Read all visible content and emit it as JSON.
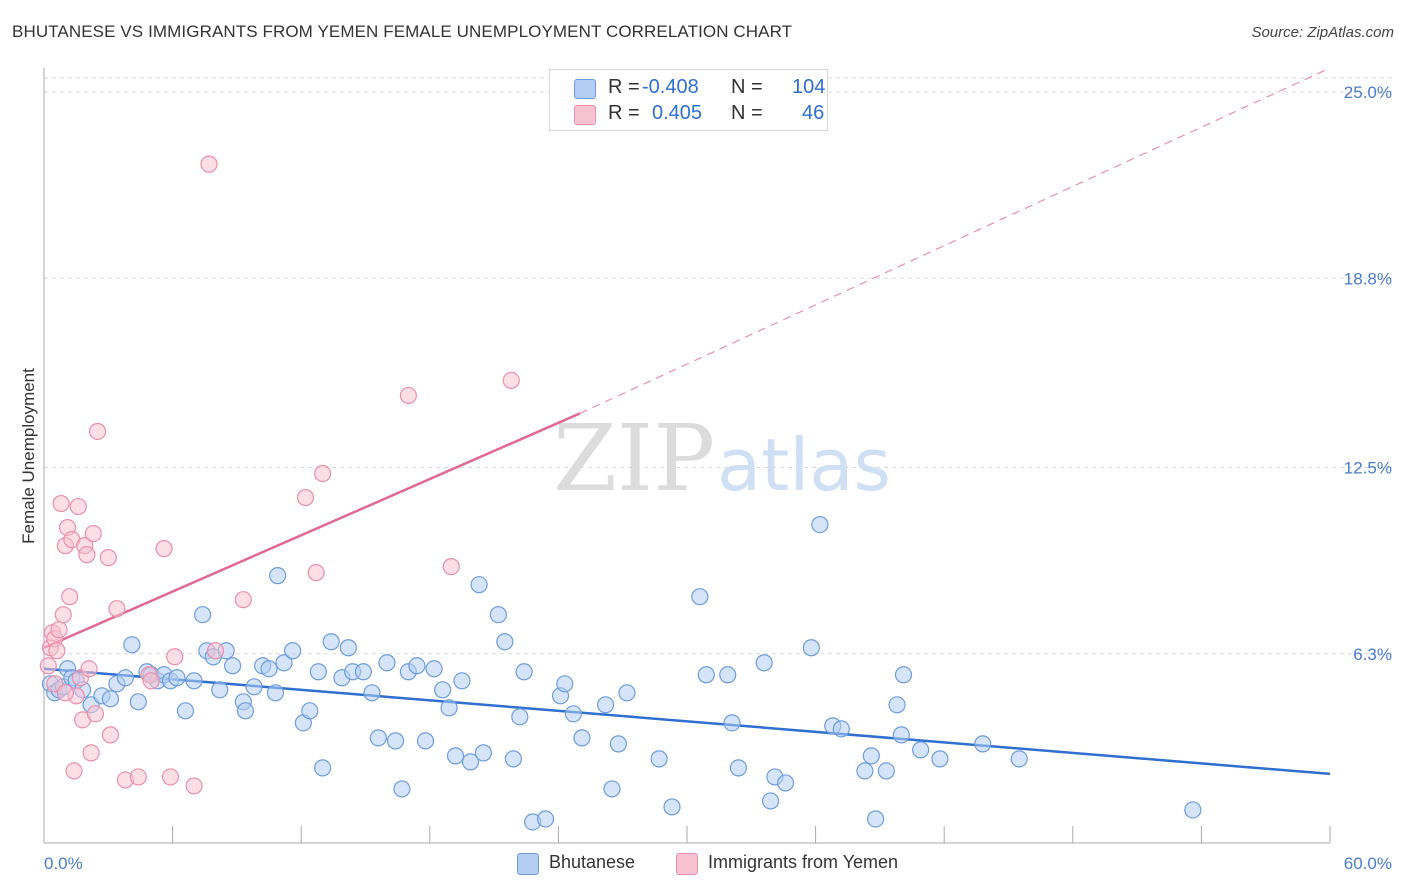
{
  "title": "BHUTANESE VS IMMIGRANTS FROM YEMEN FEMALE UNEMPLOYMENT CORRELATION CHART",
  "source": "Source: ZipAtlas.com",
  "legend_top": [
    {
      "r_label": "R =",
      "r_value": "-0.408",
      "n_label": "N =",
      "n_value": "104"
    },
    {
      "r_label": "R =",
      "r_value": "0.405",
      "n_label": "N =",
      "n_value": "46"
    }
  ],
  "colors": {
    "blue_fill": "#b3cdf2",
    "blue_stroke": "#6d9ddc",
    "blue_line": "#2f6fcf",
    "pink_fill": "#f7c3d2",
    "pink_stroke": "#e990ab",
    "pink_line": "#e06a92",
    "grid": "#d9d9d9",
    "axis": "#aaaaaa"
  },
  "chart_data": {
    "type": "scatter",
    "title": "BHUTANESE VS IMMIGRANTS FROM YEMEN FEMALE UNEMPLOYMENT CORRELATION CHART",
    "xlabel": "",
    "ylabel": "Female Unemployment",
    "xlim": [
      0,
      60
    ],
    "ylim": [
      0,
      25.8
    ],
    "y_ticks": [
      {
        "value": 6.3,
        "label": "6.3%"
      },
      {
        "value": 12.5,
        "label": "12.5%"
      },
      {
        "value": 18.8,
        "label": "18.8%"
      },
      {
        "value": 25.0,
        "label": "25.0%"
      }
    ],
    "x_ticks": [
      {
        "value": 0,
        "label": "0.0%"
      },
      {
        "value": 60,
        "label": "60.0%"
      }
    ],
    "grid": true,
    "watermark": {
      "part1": "ZIP",
      "part2": "atlas"
    },
    "series": [
      {
        "name": "Bhutanese",
        "color": "#6d9ddc",
        "trend": {
          "x0": 0,
          "y0": 5.8,
          "x1": 60,
          "y1": 2.3
        },
        "points": [
          [
            0.3,
            5.3
          ],
          [
            0.5,
            5.0
          ],
          [
            0.7,
            5.1
          ],
          [
            0.9,
            5.2
          ],
          [
            1.1,
            5.8
          ],
          [
            1.3,
            5.5
          ],
          [
            1.5,
            5.4
          ],
          [
            1.8,
            5.1
          ],
          [
            2.2,
            4.6
          ],
          [
            2.7,
            4.9
          ],
          [
            3.1,
            4.8
          ],
          [
            3.4,
            5.3
          ],
          [
            3.8,
            5.5
          ],
          [
            4.1,
            6.6
          ],
          [
            4.4,
            4.7
          ],
          [
            4.8,
            5.7
          ],
          [
            5.0,
            5.6
          ],
          [
            5.3,
            5.4
          ],
          [
            5.6,
            5.6
          ],
          [
            5.9,
            5.4
          ],
          [
            6.2,
            5.5
          ],
          [
            6.6,
            4.4
          ],
          [
            7.0,
            5.4
          ],
          [
            7.4,
            7.6
          ],
          [
            7.6,
            6.4
          ],
          [
            7.9,
            6.2
          ],
          [
            8.2,
            5.1
          ],
          [
            8.5,
            6.4
          ],
          [
            8.8,
            5.9
          ],
          [
            9.3,
            4.7
          ],
          [
            9.4,
            4.4
          ],
          [
            9.8,
            5.2
          ],
          [
            10.2,
            5.9
          ],
          [
            10.5,
            5.8
          ],
          [
            10.8,
            5.0
          ],
          [
            10.9,
            8.9
          ],
          [
            11.2,
            6.0
          ],
          [
            11.6,
            6.4
          ],
          [
            12.1,
            4.0
          ],
          [
            12.4,
            4.4
          ],
          [
            12.8,
            5.7
          ],
          [
            13.0,
            2.5
          ],
          [
            13.4,
            6.7
          ],
          [
            13.9,
            5.5
          ],
          [
            14.2,
            6.5
          ],
          [
            14.4,
            5.7
          ],
          [
            14.9,
            5.7
          ],
          [
            15.3,
            5.0
          ],
          [
            15.6,
            3.5
          ],
          [
            16.0,
            6.0
          ],
          [
            16.4,
            3.4
          ],
          [
            16.7,
            1.8
          ],
          [
            17.0,
            5.7
          ],
          [
            17.4,
            5.9
          ],
          [
            17.8,
            3.4
          ],
          [
            18.2,
            5.8
          ],
          [
            18.6,
            5.1
          ],
          [
            18.9,
            4.5
          ],
          [
            19.2,
            2.9
          ],
          [
            19.5,
            5.4
          ],
          [
            19.9,
            2.7
          ],
          [
            20.3,
            8.6
          ],
          [
            20.5,
            3.0
          ],
          [
            21.2,
            7.6
          ],
          [
            21.5,
            6.7
          ],
          [
            21.9,
            2.8
          ],
          [
            22.2,
            4.2
          ],
          [
            22.4,
            5.7
          ],
          [
            22.8,
            0.7
          ],
          [
            23.4,
            0.8
          ],
          [
            24.1,
            4.9
          ],
          [
            24.3,
            5.3
          ],
          [
            24.7,
            4.3
          ],
          [
            25.1,
            3.5
          ],
          [
            26.2,
            4.6
          ],
          [
            26.5,
            1.8
          ],
          [
            26.8,
            3.3
          ],
          [
            27.2,
            5.0
          ],
          [
            28.7,
            2.8
          ],
          [
            29.3,
            1.2
          ],
          [
            30.6,
            8.2
          ],
          [
            30.9,
            5.6
          ],
          [
            31.9,
            5.6
          ],
          [
            32.1,
            4.0
          ],
          [
            32.4,
            2.5
          ],
          [
            33.6,
            6.0
          ],
          [
            33.9,
            1.4
          ],
          [
            34.1,
            2.2
          ],
          [
            34.6,
            2.0
          ],
          [
            35.8,
            6.5
          ],
          [
            36.2,
            10.6
          ],
          [
            36.8,
            3.9
          ],
          [
            37.2,
            3.8
          ],
          [
            38.3,
            2.4
          ],
          [
            38.6,
            2.9
          ],
          [
            38.8,
            0.8
          ],
          [
            39.3,
            2.4
          ],
          [
            39.8,
            4.6
          ],
          [
            40.0,
            3.6
          ],
          [
            40.1,
            5.6
          ],
          [
            40.9,
            3.1
          ],
          [
            41.8,
            2.8
          ],
          [
            43.8,
            3.3
          ],
          [
            45.5,
            2.8
          ],
          [
            53.6,
            1.1
          ]
        ]
      },
      {
        "name": "Immigrants from Yemen",
        "color": "#e990ab",
        "trend": {
          "x0": 0,
          "y0": 6.5,
          "x1": 25,
          "y1": 14.3
        },
        "trend_dashed": {
          "x0": 25,
          "y0": 14.3,
          "x1": 60,
          "y1": 25.8
        },
        "points": [
          [
            0.2,
            5.9
          ],
          [
            0.3,
            6.5
          ],
          [
            0.4,
            7.0
          ],
          [
            0.5,
            6.8
          ],
          [
            0.6,
            6.4
          ],
          [
            0.7,
            7.1
          ],
          [
            0.8,
            11.3
          ],
          [
            0.9,
            7.6
          ],
          [
            1.0,
            9.9
          ],
          [
            1.1,
            10.5
          ],
          [
            1.2,
            8.2
          ],
          [
            1.3,
            10.1
          ],
          [
            1.4,
            2.4
          ],
          [
            1.5,
            4.9
          ],
          [
            1.6,
            11.2
          ],
          [
            1.7,
            5.5
          ],
          [
            1.8,
            4.1
          ],
          [
            1.9,
            9.9
          ],
          [
            2.0,
            9.6
          ],
          [
            2.1,
            5.8
          ],
          [
            2.2,
            3.0
          ],
          [
            2.3,
            10.3
          ],
          [
            2.4,
            4.3
          ],
          [
            2.5,
            13.7
          ],
          [
            3.0,
            9.5
          ],
          [
            3.1,
            3.6
          ],
          [
            3.4,
            7.8
          ],
          [
            3.8,
            2.1
          ],
          [
            4.4,
            2.2
          ],
          [
            4.9,
            5.6
          ],
          [
            5.0,
            5.4
          ],
          [
            5.6,
            9.8
          ],
          [
            5.9,
            2.2
          ],
          [
            6.1,
            6.2
          ],
          [
            7.0,
            1.9
          ],
          [
            7.7,
            22.6
          ],
          [
            8.0,
            6.4
          ],
          [
            9.3,
            8.1
          ],
          [
            12.2,
            11.5
          ],
          [
            12.7,
            9.0
          ],
          [
            13.0,
            12.3
          ],
          [
            17.0,
            14.9
          ],
          [
            19.0,
            9.2
          ],
          [
            21.8,
            15.4
          ],
          [
            0.5,
            5.3
          ],
          [
            1.0,
            5.0
          ]
        ]
      }
    ],
    "legend_position": "top-center"
  },
  "legend_bottom": [
    {
      "label": "Bhutanese",
      "color": "#b3cdf2"
    },
    {
      "label": "Immigrants from Yemen",
      "color": "#f7c3d2"
    }
  ]
}
